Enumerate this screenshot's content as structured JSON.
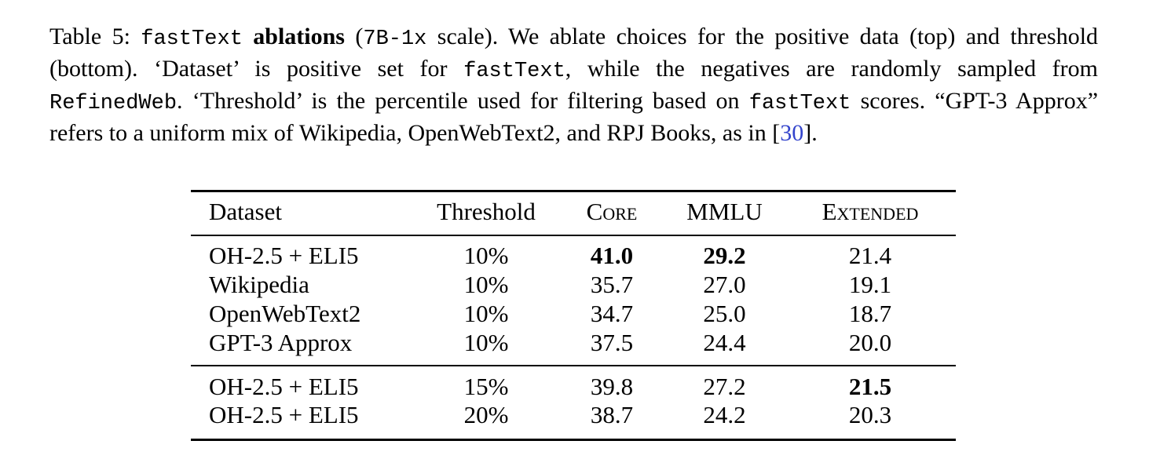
{
  "caption": {
    "segments": [
      "Table 5:",
      "fastText",
      "ablations",
      "(",
      "7B-1x",
      "scale). We ablate choices for the positive data (top) and threshold (bottom). ‘Dataset’ is positive set for",
      "fastText",
      ", while the negatives are randomly sampled from",
      "RefinedWeb",
      ". ‘Threshold’ is the percentile used for filtering based on",
      "fastText",
      "scores. “GPT-3 Approx” refers to a uniform mix of Wikipedia, OpenWebText2, and RPJ Books, as in [",
      "30",
      "]."
    ]
  },
  "table": {
    "header": [
      "Dataset",
      "Threshold",
      "Core",
      "MMLU",
      "Extended"
    ],
    "rows": [
      [
        "OH-2.5 + ELI5",
        "10%",
        "41.0",
        "29.2",
        "21.4"
      ],
      [
        "Wikipedia",
        "10%",
        "35.7",
        "27.0",
        "19.1"
      ],
      [
        "OpenWebText2",
        "10%",
        "34.7",
        "25.0",
        "18.7"
      ],
      [
        "GPT-3 Approx",
        "10%",
        "37.5",
        "24.4",
        "20.0"
      ],
      [
        "OH-2.5 + ELI5",
        "15%",
        "39.8",
        "27.2",
        "21.5"
      ],
      [
        "OH-2.5 + ELI5",
        "20%",
        "38.7",
        "24.2",
        "20.3"
      ]
    ]
  }
}
